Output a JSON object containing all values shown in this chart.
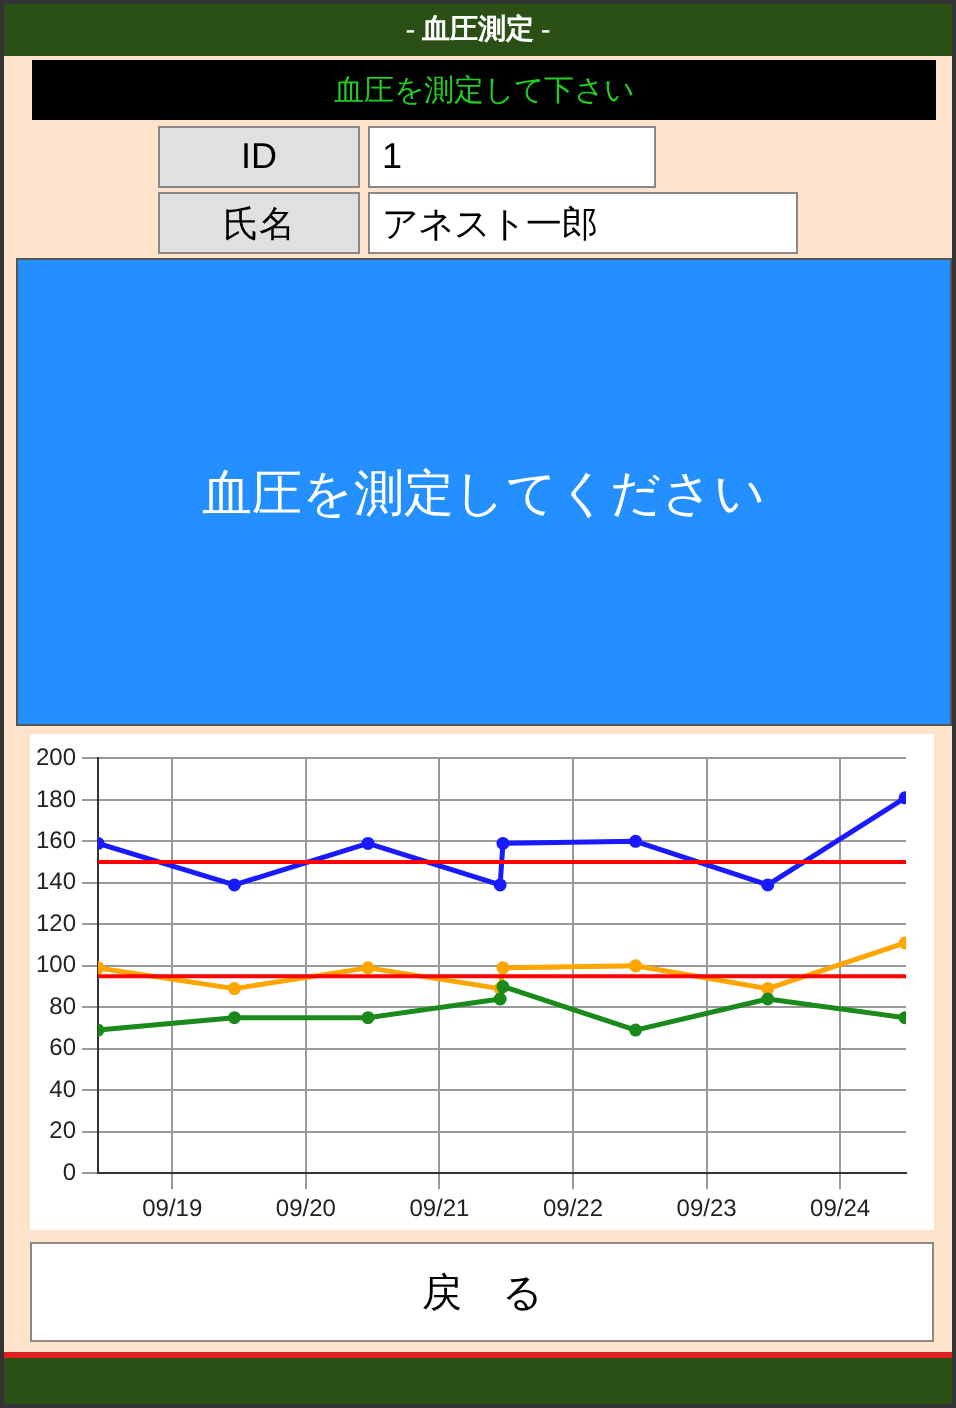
{
  "chart_data": {
    "type": "line",
    "annotations": [
      "- 血圧測定 -",
      "血圧を測定して下さい",
      "ID",
      "1",
      "氏名",
      "アネスト一郎",
      "血圧を測定してください",
      "戻　る"
    ],
    "x": [
      "--09-18T10:40",
      "--09-19T11:10",
      "--09-20T11:10",
      "--09-21T10:55",
      "--09-21T11:25",
      "--09-22T11:15",
      "--09-23T11:00",
      "--09-24T11:40"
    ],
    "series": [
      {
        "color": "#1a1aff",
        "values": [
          159,
          139,
          159,
          139,
          159,
          160,
          139,
          181
        ]
      },
      {
        "color": "#ffa500",
        "values": [
          99,
          89,
          99,
          89,
          99,
          100,
          89,
          111
        ]
      },
      {
        "color": "#1a8a1a",
        "values": [
          69,
          75,
          75,
          84,
          90,
          69,
          84,
          75
        ]
      }
    ],
    "ref_lines": [
      {
        "axis": "y",
        "value": 150,
        "color": "#ff0000"
      },
      {
        "axis": "y",
        "value": 95,
        "color": "#ff0000"
      }
    ],
    "xlim": [
      "--09-18T10:40",
      "--09-24T11:50"
    ],
    "xticks": [
      {
        "value": "--09-19",
        "label": "09/19"
      },
      {
        "value": "--09-20",
        "label": "09/20"
      },
      {
        "value": "--09-21",
        "label": "09/21"
      },
      {
        "value": "--09-22",
        "label": "09/22"
      },
      {
        "value": "--09-23",
        "label": "09/23"
      },
      {
        "value": "--09-24",
        "label": "09/24"
      }
    ],
    "ylim": [
      0,
      200
    ],
    "yticks": [
      0,
      20,
      40,
      60,
      80,
      100,
      120,
      140,
      160,
      180,
      200
    ],
    "grid": true,
    "marker": "circle",
    "line_style": "solid",
    "legend": false
  }
}
